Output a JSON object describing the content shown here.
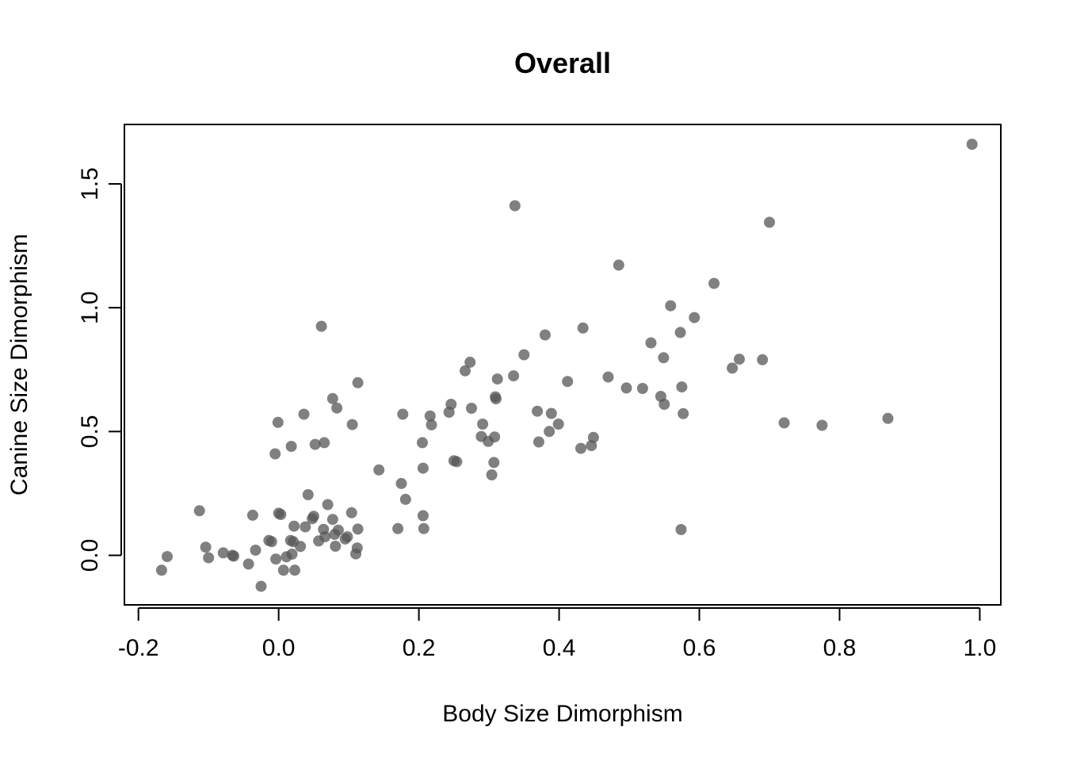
{
  "chart_data": {
    "type": "scatter",
    "title": "Overall",
    "xlabel": "Body Size Dimorphism",
    "ylabel": "Canine Size Dimorphism",
    "xlim": [
      -0.22,
      1.03
    ],
    "ylim": [
      -0.2,
      1.74
    ],
    "x_ticks": [
      -0.2,
      0.0,
      0.2,
      0.4,
      0.6,
      0.8,
      1.0
    ],
    "x_tick_labels": [
      "-0.2",
      "0.0",
      "0.2",
      "0.4",
      "0.6",
      "0.8",
      "1.0"
    ],
    "y_ticks": [
      0.0,
      0.5,
      1.0,
      1.5
    ],
    "y_tick_labels": [
      "0.0",
      "0.5",
      "1.0",
      "1.5"
    ],
    "grid": false,
    "point_color": "#555555",
    "point_opacity": 0.75,
    "points": [
      [
        -0.167,
        -0.06
      ],
      [
        -0.159,
        -0.005
      ],
      [
        -0.113,
        0.18
      ],
      [
        -0.104,
        0.033
      ],
      [
        -0.1,
        -0.01
      ],
      [
        -0.079,
        0.01
      ],
      [
        -0.066,
        0.0
      ],
      [
        -0.064,
        -0.003
      ],
      [
        -0.043,
        -0.035
      ],
      [
        -0.037,
        0.162
      ],
      [
        -0.033,
        0.021
      ],
      [
        -0.025,
        -0.125
      ],
      [
        -0.014,
        0.06
      ],
      [
        -0.01,
        0.055
      ],
      [
        -0.005,
        0.41
      ],
      [
        -0.004,
        -0.015
      ],
      [
        -0.001,
        0.537
      ],
      [
        0.0,
        0.17
      ],
      [
        0.003,
        0.165
      ],
      [
        0.007,
        -0.06
      ],
      [
        0.011,
        -0.006
      ],
      [
        0.017,
        0.06
      ],
      [
        0.018,
        0.44
      ],
      [
        0.019,
        0.005
      ],
      [
        0.021,
        0.055
      ],
      [
        0.022,
        0.118
      ],
      [
        0.023,
        -0.06
      ],
      [
        0.031,
        0.036
      ],
      [
        0.036,
        0.57
      ],
      [
        0.038,
        0.115
      ],
      [
        0.042,
        0.245
      ],
      [
        0.048,
        0.148
      ],
      [
        0.05,
        0.158
      ],
      [
        0.052,
        0.448
      ],
      [
        0.057,
        0.058
      ],
      [
        0.061,
        0.925
      ],
      [
        0.064,
        0.105
      ],
      [
        0.065,
        0.455
      ],
      [
        0.066,
        0.075
      ],
      [
        0.07,
        0.205
      ],
      [
        0.077,
        0.145
      ],
      [
        0.077,
        0.633
      ],
      [
        0.08,
        0.085
      ],
      [
        0.081,
        0.037
      ],
      [
        0.083,
        0.595
      ],
      [
        0.085,
        0.102
      ],
      [
        0.095,
        0.066
      ],
      [
        0.098,
        0.075
      ],
      [
        0.104,
        0.172
      ],
      [
        0.105,
        0.528
      ],
      [
        0.11,
        0.006
      ],
      [
        0.112,
        0.03
      ],
      [
        0.113,
        0.106
      ],
      [
        0.113,
        0.697
      ],
      [
        0.143,
        0.345
      ],
      [
        0.17,
        0.108
      ],
      [
        0.175,
        0.29
      ],
      [
        0.177,
        0.57
      ],
      [
        0.181,
        0.226
      ],
      [
        0.205,
        0.455
      ],
      [
        0.206,
        0.352
      ],
      [
        0.206,
        0.16
      ],
      [
        0.207,
        0.108
      ],
      [
        0.216,
        0.563
      ],
      [
        0.218,
        0.527
      ],
      [
        0.243,
        0.578
      ],
      [
        0.246,
        0.61
      ],
      [
        0.25,
        0.382
      ],
      [
        0.254,
        0.378
      ],
      [
        0.266,
        0.745
      ],
      [
        0.273,
        0.78
      ],
      [
        0.275,
        0.594
      ],
      [
        0.289,
        0.48
      ],
      [
        0.291,
        0.53
      ],
      [
        0.299,
        0.46
      ],
      [
        0.304,
        0.325
      ],
      [
        0.307,
        0.375
      ],
      [
        0.308,
        0.478
      ],
      [
        0.309,
        0.64
      ],
      [
        0.31,
        0.632
      ],
      [
        0.312,
        0.712
      ],
      [
        0.335,
        0.725
      ],
      [
        0.337,
        1.412
      ],
      [
        0.35,
        0.81
      ],
      [
        0.369,
        0.582
      ],
      [
        0.371,
        0.458
      ],
      [
        0.38,
        0.89
      ],
      [
        0.386,
        0.5
      ],
      [
        0.389,
        0.573
      ],
      [
        0.399,
        0.53
      ],
      [
        0.412,
        0.702
      ],
      [
        0.431,
        0.432
      ],
      [
        0.434,
        0.918
      ],
      [
        0.446,
        0.443
      ],
      [
        0.449,
        0.476
      ],
      [
        0.47,
        0.72
      ],
      [
        0.485,
        1.172
      ],
      [
        0.496,
        0.676
      ],
      [
        0.519,
        0.674
      ],
      [
        0.531,
        0.858
      ],
      [
        0.545,
        0.642
      ],
      [
        0.549,
        0.798
      ],
      [
        0.55,
        0.61
      ],
      [
        0.559,
        1.008
      ],
      [
        0.573,
        0.9
      ],
      [
        0.574,
        0.104
      ],
      [
        0.575,
        0.68
      ],
      [
        0.577,
        0.572
      ],
      [
        0.593,
        0.96
      ],
      [
        0.621,
        1.098
      ],
      [
        0.647,
        0.756
      ],
      [
        0.657,
        0.792
      ],
      [
        0.69,
        0.79
      ],
      [
        0.7,
        1.345
      ],
      [
        0.721,
        0.535
      ],
      [
        0.775,
        0.525
      ],
      [
        0.869,
        0.553
      ],
      [
        0.989,
        1.66
      ]
    ]
  }
}
